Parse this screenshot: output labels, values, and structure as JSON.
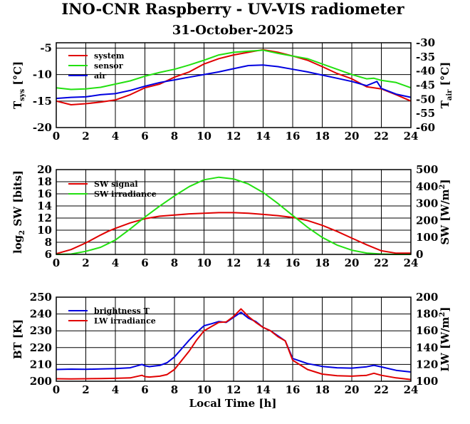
{
  "title": "INO-CNR Raspberry - UV-VIS radiometer",
  "date": "31-October-2025",
  "xlabel": "Local Time [h]",
  "colors": {
    "red": "#e00000",
    "green": "#22e010",
    "blue": "#0000e0"
  },
  "chart_data": [
    {
      "type": "line",
      "panel": "temperature",
      "ylabel_left_main": "T",
      "ylabel_left_sub": "sys",
      "ylabel_left_unit": " [°C]",
      "ylabel_right_main": "T",
      "ylabel_right_sub": "air",
      "ylabel_right_unit": " [°C]",
      "xlim": [
        0,
        24
      ],
      "ylim": [
        -20,
        -4
      ],
      "y2lim": [
        -60,
        -30
      ],
      "xticks": [
        0,
        2,
        4,
        6,
        8,
        10,
        12,
        14,
        16,
        18,
        20,
        22,
        24
      ],
      "yticks": [
        -20,
        -15,
        -10,
        -5
      ],
      "y2ticks": [
        -60,
        -55,
        -50,
        -45,
        -40,
        -35,
        -30
      ],
      "legend": [
        "system",
        "sensor",
        "air"
      ],
      "series": [
        {
          "name": "system",
          "axis": "left",
          "color": "red",
          "x": [
            0,
            1,
            2,
            3,
            4,
            5,
            6,
            7,
            8,
            9,
            10,
            11,
            12,
            13,
            14,
            15,
            16,
            17,
            18,
            19,
            20,
            21,
            21.5,
            22,
            23,
            24
          ],
          "y": [
            -15.0,
            -15.7,
            -15.5,
            -15.2,
            -14.8,
            -13.8,
            -12.5,
            -11.8,
            -10.5,
            -9.5,
            -8.0,
            -7.0,
            -6.3,
            -5.8,
            -5.3,
            -5.8,
            -6.5,
            -7.3,
            -8.5,
            -9.8,
            -10.8,
            -12.3,
            -12.5,
            -12.7,
            -13.8,
            -15.0
          ]
        },
        {
          "name": "sensor",
          "axis": "left",
          "color": "green",
          "x": [
            0,
            1,
            2,
            3,
            4,
            5,
            6,
            7,
            8,
            9,
            10,
            11,
            12,
            13,
            14,
            15,
            16,
            17,
            18,
            19,
            20,
            21,
            21.5,
            22,
            23,
            24
          ],
          "y": [
            -12.5,
            -12.8,
            -12.7,
            -12.4,
            -11.8,
            -11.2,
            -10.3,
            -9.6,
            -9.0,
            -8.2,
            -7.3,
            -6.3,
            -5.8,
            -5.6,
            -5.4,
            -6.0,
            -6.5,
            -7.0,
            -8.0,
            -9.0,
            -10.0,
            -10.8,
            -10.7,
            -11.1,
            -11.5,
            -12.5
          ]
        },
        {
          "name": "air",
          "axis": "left",
          "color": "blue",
          "x": [
            0,
            1,
            2,
            3,
            4,
            5,
            6,
            7,
            8,
            9,
            10,
            11,
            12,
            13,
            14,
            15,
            16,
            17,
            18,
            19,
            20,
            21,
            21.7,
            22,
            23,
            24
          ],
          "y": [
            -14.5,
            -14.3,
            -14.2,
            -13.8,
            -13.6,
            -13.0,
            -12.2,
            -11.5,
            -11.0,
            -10.5,
            -10.0,
            -9.5,
            -8.9,
            -8.3,
            -8.2,
            -8.5,
            -9.0,
            -9.5,
            -10.1,
            -10.7,
            -11.3,
            -12.1,
            -11.3,
            -12.6,
            -13.7,
            -14.3
          ]
        }
      ]
    },
    {
      "type": "line",
      "panel": "shortwave",
      "ylabel_left_main": "log",
      "ylabel_left_sub": "2",
      "ylabel_left_unit": " SW [bits]",
      "ylabel_right_main": "SW [W/m",
      "ylabel_right_sup": "2",
      "ylabel_right_unit": "]",
      "xlim": [
        0,
        24
      ],
      "ylim": [
        6,
        20
      ],
      "y2lim": [
        0,
        500
      ],
      "xticks": [
        0,
        2,
        4,
        6,
        8,
        10,
        12,
        14,
        16,
        18,
        20,
        22,
        24
      ],
      "yticks": [
        6,
        8,
        10,
        12,
        14,
        16,
        18,
        20
      ],
      "y2ticks": [
        0,
        100,
        200,
        300,
        400,
        500
      ],
      "legend": [
        "SW signal",
        "SW irradiance"
      ],
      "series": [
        {
          "name": "SW signal",
          "axis": "left",
          "color": "red",
          "x": [
            0,
            1,
            2,
            3,
            3.5,
            4,
            5,
            6,
            7,
            8,
            9,
            10,
            11,
            12,
            13,
            14,
            15,
            16,
            17,
            18,
            19,
            20,
            21,
            22,
            23,
            24
          ],
          "y": [
            6.1,
            6.8,
            7.9,
            9.2,
            9.8,
            10.3,
            11.2,
            11.9,
            12.3,
            12.5,
            12.7,
            12.8,
            12.9,
            12.9,
            12.8,
            12.6,
            12.4,
            12.1,
            11.6,
            10.8,
            9.8,
            8.7,
            7.6,
            6.6,
            6.2,
            6.2
          ]
        },
        {
          "name": "SW irradiance",
          "axis": "right",
          "color": "green",
          "x": [
            0,
            1,
            2,
            3,
            4,
            5,
            6,
            7,
            8,
            9,
            10,
            11,
            12,
            13,
            14,
            15,
            16,
            17,
            18,
            19,
            20,
            21,
            22,
            23,
            24
          ],
          "y": [
            0,
            2,
            18,
            42,
            85,
            150,
            220,
            285,
            345,
            400,
            440,
            455,
            445,
            415,
            365,
            300,
            230,
            160,
            100,
            55,
            25,
            8,
            2,
            0,
            0
          ]
        }
      ]
    },
    {
      "type": "line",
      "panel": "longwave",
      "ylabel_left_main": "BT [K]",
      "ylabel_right_main": "LW [W/m",
      "ylabel_right_sup": "2",
      "ylabel_right_unit": "]",
      "xlim": [
        0,
        24
      ],
      "ylim": [
        200,
        250
      ],
      "y2lim": [
        100,
        200
      ],
      "xticks": [
        0,
        2,
        4,
        6,
        8,
        10,
        12,
        14,
        16,
        18,
        20,
        22,
        24
      ],
      "yticks": [
        200,
        210,
        220,
        230,
        240,
        250
      ],
      "y2ticks": [
        100,
        120,
        140,
        160,
        180,
        200
      ],
      "legend": [
        "brightness T",
        "LW irradiance"
      ],
      "series": [
        {
          "name": "brightness T",
          "axis": "left",
          "color": "blue",
          "x": [
            0,
            1,
            2,
            3,
            4,
            5,
            5.8,
            6,
            6.3,
            7,
            7.5,
            8,
            8.5,
            9,
            9.5,
            10,
            10.5,
            11,
            11.5,
            12,
            12.5,
            13,
            13.5,
            14,
            14.5,
            15,
            15.5,
            16,
            17,
            18,
            19,
            20,
            21,
            21.5,
            22,
            23,
            24
          ],
          "y": [
            207.0,
            207.2,
            207.1,
            207.3,
            207.5,
            208.0,
            210.0,
            209.2,
            208.7,
            209.4,
            211.0,
            214.5,
            219.5,
            224.5,
            229.0,
            233.0,
            234.2,
            235.5,
            235.0,
            238.0,
            241.0,
            237.5,
            235.5,
            232.0,
            230.0,
            227.0,
            224.0,
            213.5,
            210.5,
            208.8,
            208.0,
            207.8,
            208.6,
            209.5,
            208.5,
            206.5,
            205.5
          ]
        },
        {
          "name": "LW irradiance",
          "axis": "right",
          "color": "red",
          "x": [
            0,
            1,
            2,
            3,
            4,
            5,
            5.8,
            6,
            6.3,
            7,
            7.5,
            8,
            8.5,
            9,
            9.5,
            10,
            10.5,
            11,
            11.5,
            12,
            12.5,
            13,
            13.5,
            14,
            14.5,
            15,
            15.5,
            16,
            17,
            18,
            19,
            20,
            21,
            21.5,
            22,
            23,
            24
          ],
          "y": [
            103.0,
            102.8,
            103.0,
            103.2,
            103.5,
            104.0,
            107.0,
            105.5,
            105.0,
            106.0,
            108.0,
            114.0,
            125.0,
            136.0,
            149.0,
            160.0,
            165.0,
            170.0,
            170.5,
            177.0,
            186.0,
            177.0,
            170.0,
            164.0,
            160.0,
            153.0,
            148.0,
            125.0,
            114.0,
            108.5,
            106.5,
            106.0,
            107.0,
            109.5,
            107.0,
            104.0,
            102.0
          ]
        }
      ]
    }
  ]
}
